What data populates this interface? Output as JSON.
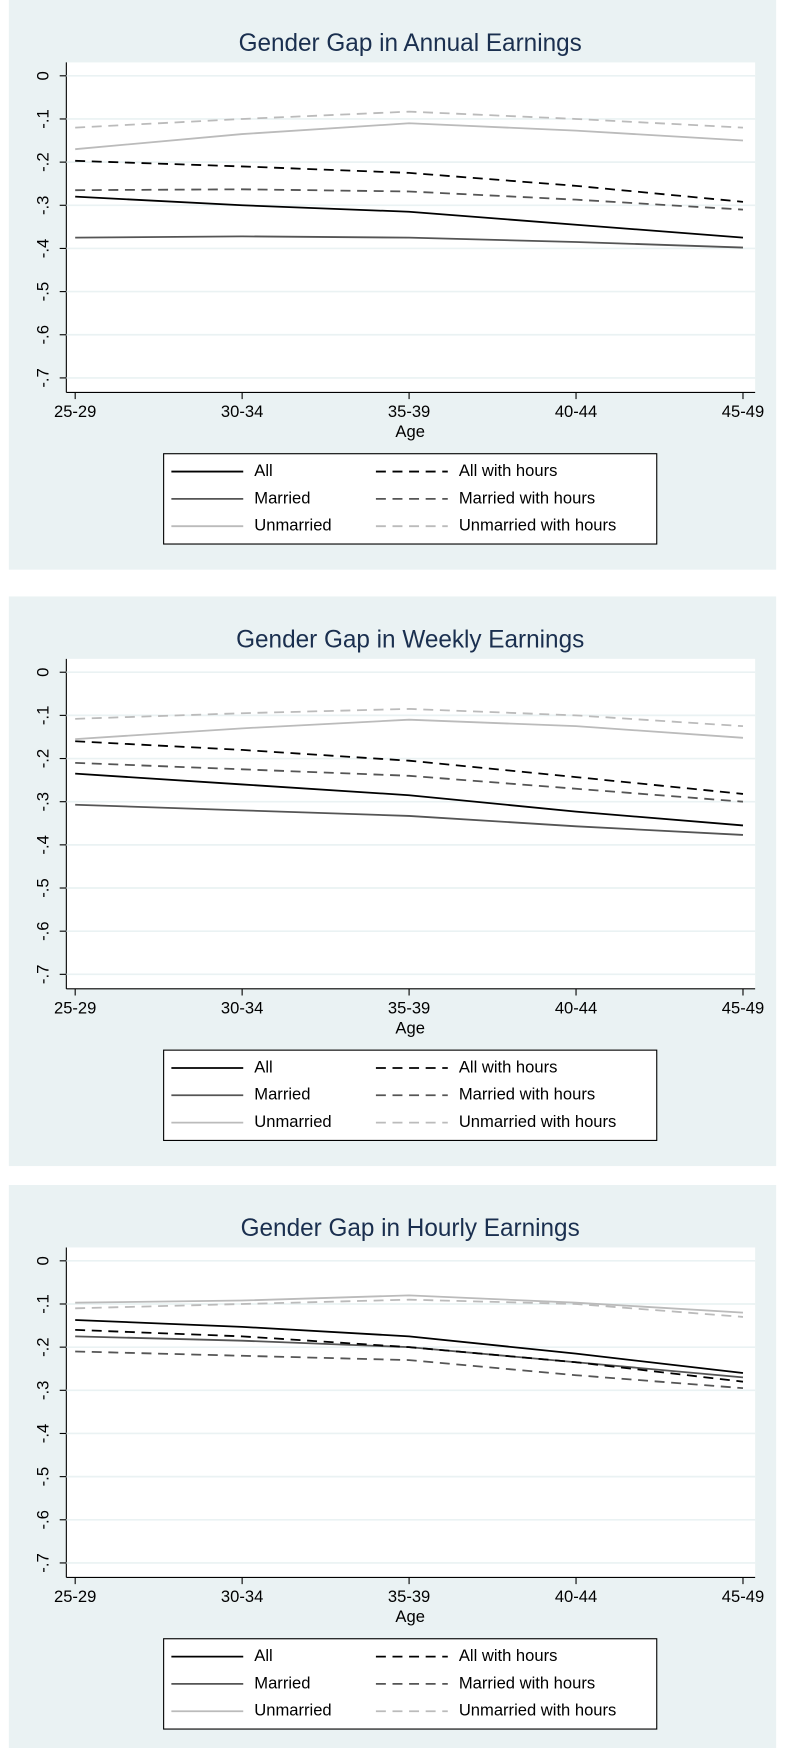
{
  "chart_data": [
    {
      "type": "line",
      "title": "Gender Gap in Annual Earnings",
      "xlabel": "Age",
      "categories": [
        "25-29",
        "30-34",
        "35-39",
        "40-44",
        "45-49"
      ],
      "ylim": [
        -0.7,
        0
      ],
      "yticks": [
        0,
        {
          "value": -0.1,
          "label": "-.1"
        },
        {
          "value": -0.2,
          "label": "-.2"
        },
        {
          "value": -0.3,
          "label": "-.3"
        },
        {
          "value": -0.4,
          "label": "-.4"
        },
        {
          "value": -0.5,
          "label": "-.5"
        },
        {
          "value": -0.6,
          "label": "-.6"
        },
        {
          "value": -0.7,
          "label": "-.7"
        }
      ],
      "grid": true,
      "series": [
        {
          "name": "All",
          "color": "#000000",
          "line_style": "solid",
          "values": [
            -0.28,
            -0.3,
            -0.315,
            -0.345,
            -0.375
          ]
        },
        {
          "name": "Married",
          "color": "#555555",
          "line_style": "solid",
          "values": [
            -0.375,
            -0.372,
            -0.375,
            -0.385,
            -0.398
          ]
        },
        {
          "name": "Unmarried",
          "color": "#bbbbbb",
          "line_style": "solid",
          "values": [
            -0.17,
            -0.135,
            -0.11,
            -0.127,
            -0.15
          ]
        },
        {
          "name": "All with hours",
          "color": "#000000",
          "line_style": "dashed",
          "values": [
            -0.197,
            -0.21,
            -0.225,
            -0.255,
            -0.292
          ]
        },
        {
          "name": "Married with hours",
          "color": "#555555",
          "line_style": "dashed",
          "values": [
            -0.265,
            -0.263,
            -0.268,
            -0.287,
            -0.31
          ]
        },
        {
          "name": "Unmarried with hours",
          "color": "#bbbbbb",
          "line_style": "dashed",
          "values": [
            -0.12,
            -0.1,
            -0.083,
            -0.1,
            -0.12
          ]
        }
      ]
    },
    {
      "type": "line",
      "title": "Gender Gap in Weekly Earnings",
      "xlabel": "Age",
      "categories": [
        "25-29",
        "30-34",
        "35-39",
        "40-44",
        "45-49"
      ],
      "ylim": [
        -0.7,
        0
      ],
      "yticks": [
        0,
        {
          "value": -0.1,
          "label": "-.1"
        },
        {
          "value": -0.2,
          "label": "-.2"
        },
        {
          "value": -0.3,
          "label": "-.3"
        },
        {
          "value": -0.4,
          "label": "-.4"
        },
        {
          "value": -0.5,
          "label": "-.5"
        },
        {
          "value": -0.6,
          "label": "-.6"
        },
        {
          "value": -0.7,
          "label": "-.7"
        }
      ],
      "grid": true,
      "series": [
        {
          "name": "All",
          "color": "#000000",
          "line_style": "solid",
          "values": [
            -0.235,
            -0.26,
            -0.285,
            -0.323,
            -0.355
          ]
        },
        {
          "name": "Married",
          "color": "#555555",
          "line_style": "solid",
          "values": [
            -0.307,
            -0.32,
            -0.333,
            -0.357,
            -0.377
          ]
        },
        {
          "name": "Unmarried",
          "color": "#bbbbbb",
          "line_style": "solid",
          "values": [
            -0.155,
            -0.13,
            -0.11,
            -0.125,
            -0.152
          ]
        },
        {
          "name": "All with hours",
          "color": "#000000",
          "line_style": "dashed",
          "values": [
            -0.16,
            -0.18,
            -0.205,
            -0.243,
            -0.282
          ]
        },
        {
          "name": "Married with hours",
          "color": "#555555",
          "line_style": "dashed",
          "values": [
            -0.21,
            -0.225,
            -0.24,
            -0.27,
            -0.3
          ]
        },
        {
          "name": "Unmarried with hours",
          "color": "#bbbbbb",
          "line_style": "dashed",
          "values": [
            -0.108,
            -0.095,
            -0.085,
            -0.1,
            -0.125
          ]
        }
      ]
    },
    {
      "type": "line",
      "title": "Gender Gap in Hourly Earnings",
      "xlabel": "Age",
      "categories": [
        "25-29",
        "30-34",
        "35-39",
        "40-44",
        "45-49"
      ],
      "ylim": [
        -0.7,
        0
      ],
      "yticks": [
        0,
        {
          "value": -0.1,
          "label": "-.1"
        },
        {
          "value": -0.2,
          "label": "-.2"
        },
        {
          "value": -0.3,
          "label": "-.3"
        },
        {
          "value": -0.4,
          "label": "-.4"
        },
        {
          "value": -0.5,
          "label": "-.5"
        },
        {
          "value": -0.6,
          "label": "-.6"
        },
        {
          "value": -0.7,
          "label": "-.7"
        }
      ],
      "grid": true,
      "series": [
        {
          "name": "All",
          "color": "#000000",
          "line_style": "solid",
          "values": [
            -0.137,
            -0.153,
            -0.175,
            -0.215,
            -0.26
          ]
        },
        {
          "name": "Married",
          "color": "#555555",
          "line_style": "solid",
          "values": [
            -0.175,
            -0.185,
            -0.2,
            -0.235,
            -0.27
          ]
        },
        {
          "name": "Unmarried",
          "color": "#bbbbbb",
          "line_style": "solid",
          "values": [
            -0.097,
            -0.092,
            -0.08,
            -0.097,
            -0.12
          ]
        },
        {
          "name": "All with hours",
          "color": "#000000",
          "line_style": "dashed",
          "values": [
            -0.16,
            -0.175,
            -0.2,
            -0.235,
            -0.28
          ]
        },
        {
          "name": "Married with hours",
          "color": "#555555",
          "line_style": "dashed",
          "values": [
            -0.21,
            -0.22,
            -0.23,
            -0.265,
            -0.295
          ]
        },
        {
          "name": "Unmarried with hours",
          "color": "#bbbbbb",
          "line_style": "dashed",
          "values": [
            -0.11,
            -0.1,
            -0.09,
            -0.1,
            -0.13
          ]
        }
      ]
    }
  ]
}
